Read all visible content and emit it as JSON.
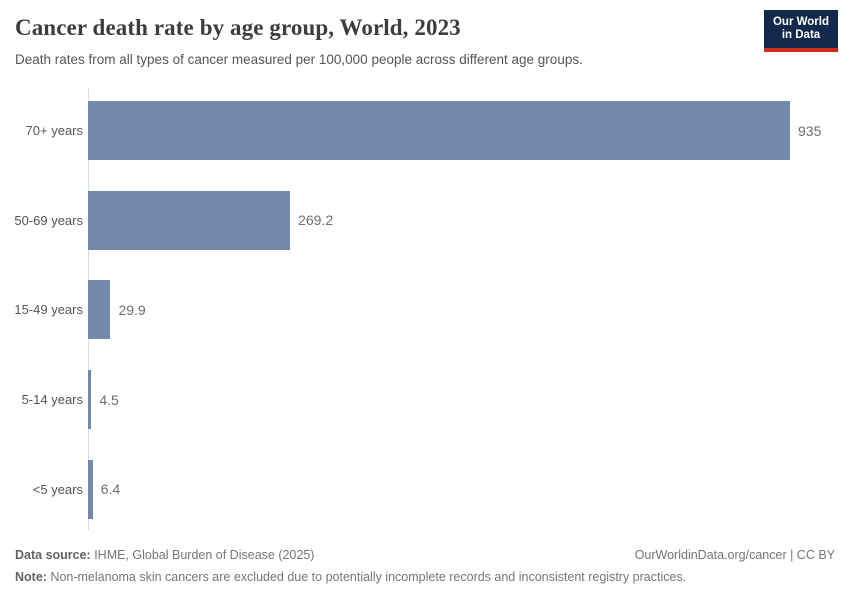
{
  "header": {
    "title": "Cancer death rate by age group, World, 2023",
    "subtitle": "Death rates from all types of cancer measured per 100,000 people across different age groups."
  },
  "logo": {
    "line1": "Our World",
    "line2": "in Data"
  },
  "chart_data": {
    "type": "bar",
    "orientation": "horizontal",
    "title": "Cancer death rate by age group, World, 2023",
    "xlabel": "",
    "ylabel": "",
    "categories": [
      "70+ years",
      "50-69 years",
      "15-49 years",
      "5-14 years",
      "<5 years"
    ],
    "values": [
      935,
      269.2,
      29.9,
      4.5,
      6.4
    ],
    "value_labels": [
      "935",
      "269.2",
      "29.9",
      "4.5",
      "6.4"
    ],
    "xlim": [
      0,
      935
    ],
    "grid": false,
    "legend_position": "none",
    "bar_color": "#7288ad",
    "axis_color": "#dcdcdc"
  },
  "footer": {
    "source_label": "Data source:",
    "source_text": " IHME, Global Burden of Disease (2025)",
    "link": "OurWorldinData.org/cancer | CC BY",
    "note_label": "Note:",
    "note_text": " Non-melanoma skin cancers are excluded due to potentially incomplete records and inconsistent registry practices."
  }
}
